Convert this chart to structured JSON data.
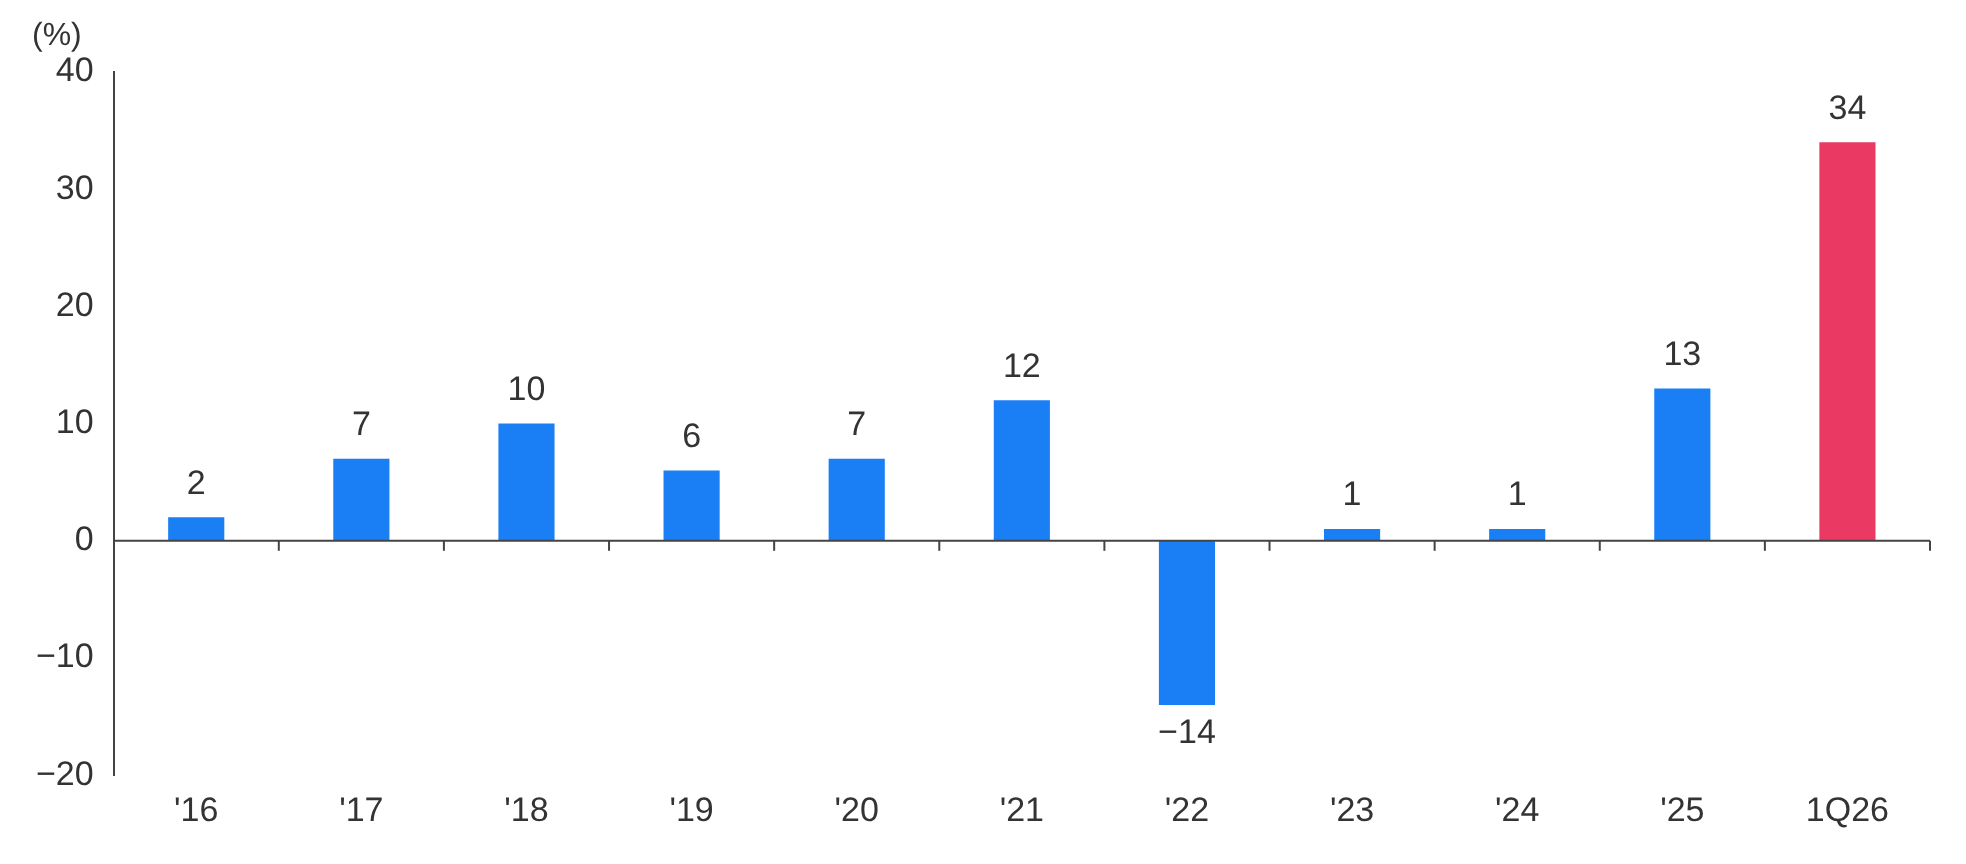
{
  "chart_data": {
    "type": "bar",
    "ylabel": "(%)",
    "categories": [
      "'16",
      "'17",
      "'18",
      "'19",
      "'20",
      "'21",
      "'22",
      "'23",
      "'24",
      "'25",
      "1Q26"
    ],
    "values": [
      2,
      7,
      10,
      6,
      7,
      12,
      -14,
      1,
      1,
      13,
      34
    ],
    "colors": [
      "#1a7ef5",
      "#1a7ef5",
      "#1a7ef5",
      "#1a7ef5",
      "#1a7ef5",
      "#1a7ef5",
      "#1a7ef5",
      "#1a7ef5",
      "#1a7ef5",
      "#1a7ef5",
      "#ea3a64"
    ],
    "value_labels": [
      "2",
      "7",
      "10",
      "6",
      "7",
      "12",
      "−14",
      "1",
      "1",
      "13",
      "34"
    ],
    "ylim": [
      -20,
      40
    ],
    "yticks": [
      {
        "value": -20,
        "label": "−20"
      },
      {
        "value": -10,
        "label": "−10"
      },
      0,
      10,
      20,
      30,
      40
    ],
    "legend": false
  }
}
